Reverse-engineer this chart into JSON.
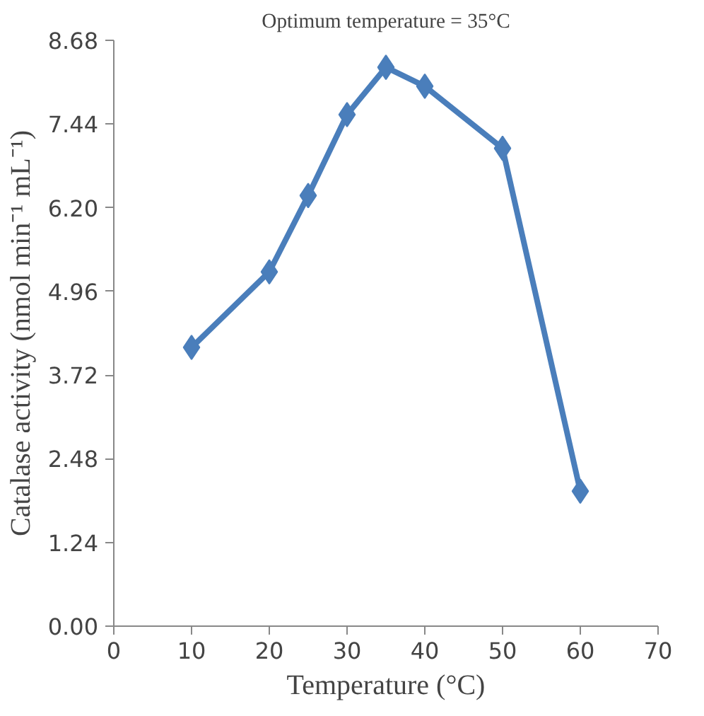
{
  "chart_data": {
    "type": "line",
    "title": "Optimum temperature = 35°C",
    "xlabel": "Temperature (°C)",
    "ylabel": "Catalase activity (nmol min⁻¹ mL⁻¹)",
    "x": [
      10,
      20,
      25,
      30,
      35,
      40,
      50,
      60
    ],
    "series": [
      {
        "color": "#4a7ebb",
        "values": [
          4.13,
          5.25,
          6.38,
          7.58,
          8.28,
          8.0,
          7.08,
          2.0
        ]
      }
    ],
    "xlim": [
      0,
      70
    ],
    "xticks": [
      0,
      10,
      20,
      30,
      40,
      50,
      60,
      70
    ],
    "ylim": [
      0,
      8.68
    ],
    "yticks": [
      {
        "value": 0,
        "label": "0.00"
      },
      {
        "value": 1.24,
        "label": "1.24"
      },
      {
        "value": 2.48,
        "label": "2.48"
      },
      {
        "value": 3.72,
        "label": "3.72"
      },
      {
        "value": 4.96,
        "label": "4.96"
      },
      {
        "value": 6.2,
        "label": "6.20"
      },
      {
        "value": 7.44,
        "label": "7.44"
      },
      {
        "value": 8.68,
        "label": "8.68"
      }
    ],
    "marker": "diamond",
    "line_style": "solid"
  }
}
